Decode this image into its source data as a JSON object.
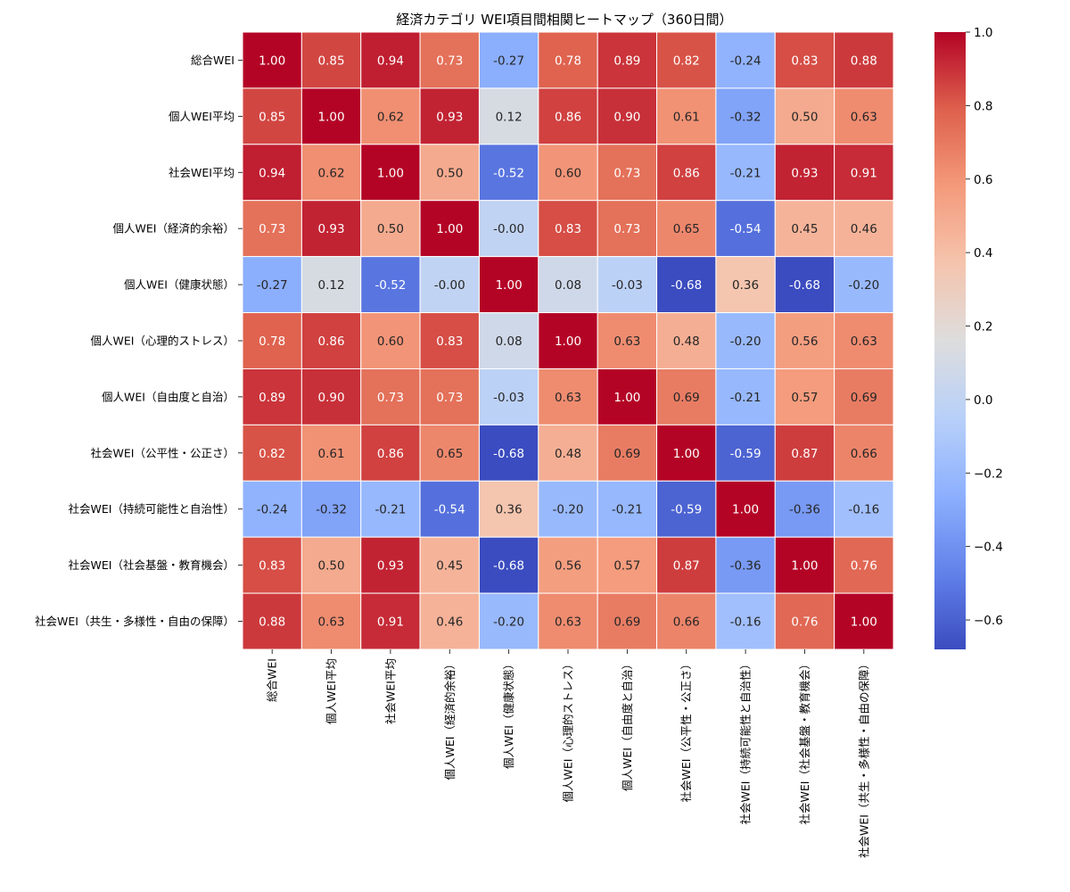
{
  "chart_data": {
    "type": "heatmap",
    "title": "経済カテゴリ WEI項目間相関ヒートマップ（360日間）",
    "row_labels": [
      "総合WEI",
      "個人WEI平均",
      "社会WEI平均",
      "個人WEI（経済的余裕）",
      "個人WEI（健康状態）",
      "個人WEI（心理的ストレス）",
      "個人WEI（自由度と自治）",
      "社会WEI（公平性・公正さ）",
      "社会WEI（持続可能性と自治性）",
      "社会WEI（社会基盤・教育機会）",
      "社会WEI（共生・多様性・自由の保障）"
    ],
    "col_labels": [
      "総合WEI",
      "個人WEI平均",
      "社会WEI平均",
      "個人WEI（経済的余裕）",
      "個人WEI（健康状態）",
      "個人WEI（心理的ストレス）",
      "個人WEI（自由度と自治）",
      "社会WEI（公平性・公正さ）",
      "社会WEI（持続可能性と自治性）",
      "社会WEI（社会基盤・教育機会）",
      "社会WEI（共生・多様性・自由の保障）"
    ],
    "values": [
      [
        1.0,
        0.85,
        0.94,
        0.73,
        -0.27,
        0.78,
        0.89,
        0.82,
        -0.24,
        0.83,
        0.88
      ],
      [
        0.85,
        1.0,
        0.62,
        0.93,
        0.12,
        0.86,
        0.9,
        0.61,
        -0.32,
        0.5,
        0.63
      ],
      [
        0.94,
        0.62,
        1.0,
        0.5,
        -0.52,
        0.6,
        0.73,
        0.86,
        -0.21,
        0.93,
        0.91
      ],
      [
        0.73,
        0.93,
        0.5,
        1.0,
        -0.0,
        0.83,
        0.73,
        0.65,
        -0.54,
        0.45,
        0.46
      ],
      [
        -0.27,
        0.12,
        -0.52,
        -0.0,
        1.0,
        0.08,
        -0.03,
        -0.68,
        0.36,
        -0.68,
        -0.2
      ],
      [
        0.78,
        0.86,
        0.6,
        0.83,
        0.08,
        1.0,
        0.63,
        0.48,
        -0.2,
        0.56,
        0.63
      ],
      [
        0.89,
        0.9,
        0.73,
        0.73,
        -0.03,
        0.63,
        1.0,
        0.69,
        -0.21,
        0.57,
        0.69
      ],
      [
        0.82,
        0.61,
        0.86,
        0.65,
        -0.68,
        0.48,
        0.69,
        1.0,
        -0.59,
        0.87,
        0.66
      ],
      [
        -0.24,
        -0.32,
        -0.21,
        -0.54,
        0.36,
        -0.2,
        -0.21,
        -0.59,
        1.0,
        -0.36,
        -0.16
      ],
      [
        0.83,
        0.5,
        0.93,
        0.45,
        -0.68,
        0.56,
        0.57,
        0.87,
        -0.36,
        1.0,
        0.76
      ],
      [
        0.88,
        0.63,
        0.91,
        0.46,
        -0.2,
        0.63,
        0.69,
        0.66,
        -0.16,
        0.76,
        1.0
      ]
    ],
    "value_format": "2 decimals",
    "colormap": "coolwarm",
    "vmin": -0.68,
    "vmax": 1.0,
    "colorbar_ticks": [
      1.0,
      0.8,
      0.6,
      0.4,
      0.2,
      0.0,
      -0.2,
      -0.4,
      -0.6
    ],
    "colorbar_tick_labels": [
      "1.0",
      "0.8",
      "0.6",
      "0.4",
      "0.2",
      "0.0",
      "−0.2",
      "−0.4",
      "−0.6"
    ],
    "legend": "colorbar-right",
    "grid": false
  }
}
